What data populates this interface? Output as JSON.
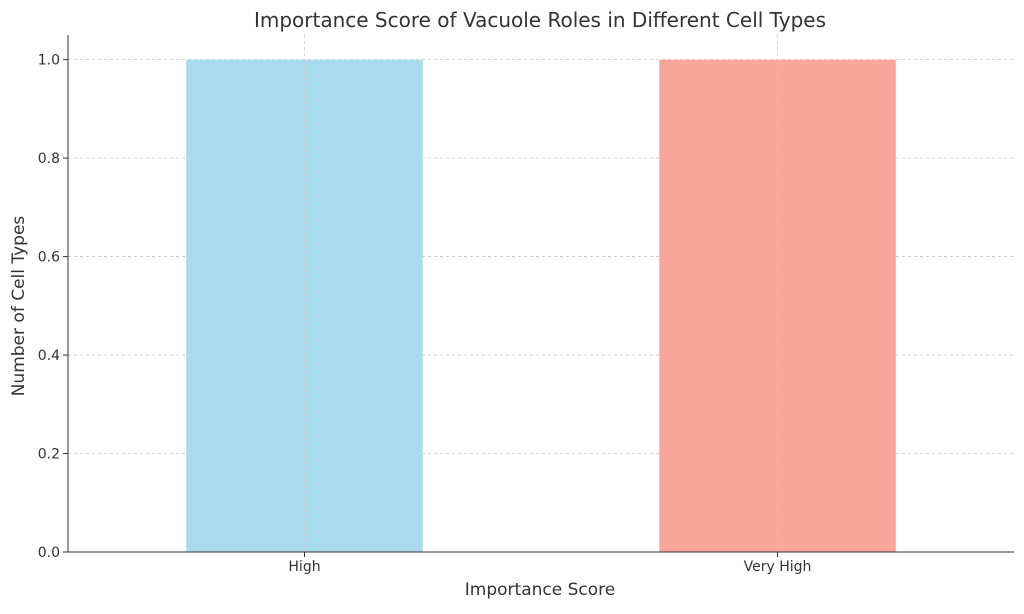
{
  "chart_data": {
    "type": "bar",
    "title": "Importance Score of Vacuole Roles in Different Cell Types",
    "xlabel": "Importance Score",
    "ylabel": "Number of Cell Types",
    "categories": [
      "High",
      "Very High"
    ],
    "values": [
      1,
      1
    ],
    "colors": [
      "#a9dbef",
      "#f9a79b"
    ],
    "ylim": [
      0,
      1.05
    ],
    "yticks": [
      "0.0",
      "0.2",
      "0.4",
      "0.6",
      "0.8",
      "1.0"
    ],
    "ytick_values": [
      0,
      0.2,
      0.4,
      0.6,
      0.8,
      1.0
    ],
    "grid": true,
    "legend": "none"
  }
}
